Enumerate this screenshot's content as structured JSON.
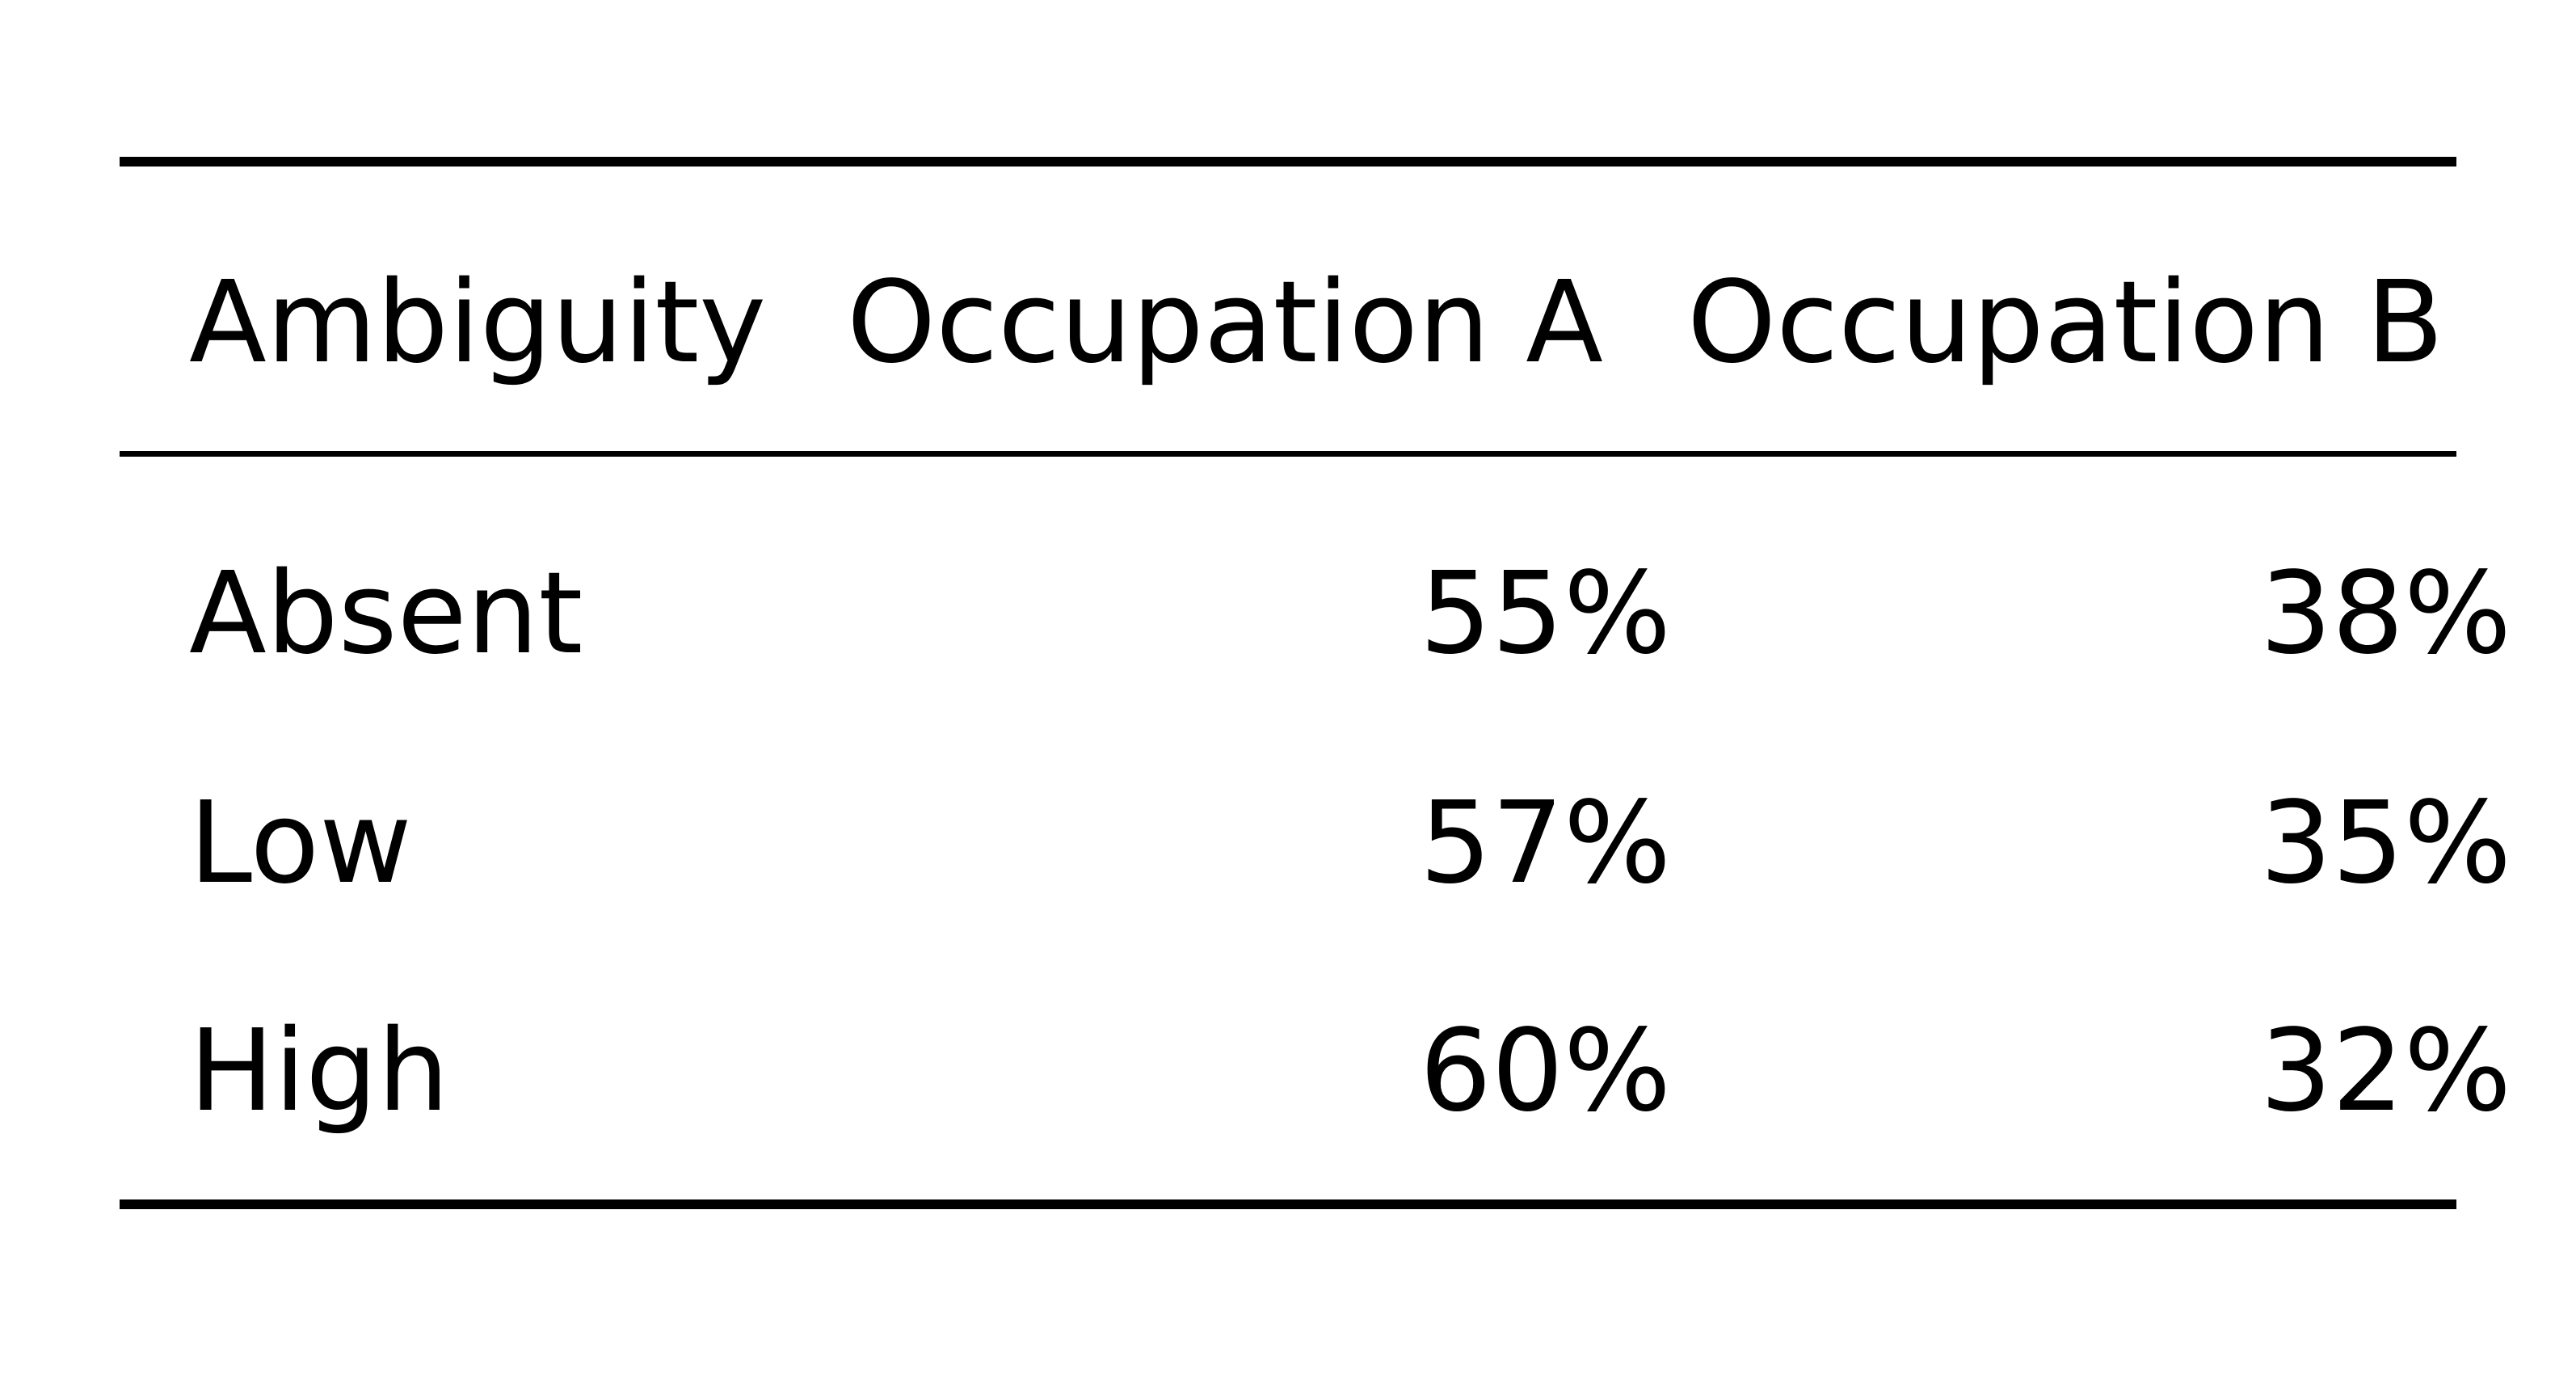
{
  "table": {
    "columns": [
      "Ambiguity",
      "Occupation A",
      "Occupation B"
    ],
    "rows": [
      [
        "Absent",
        "55%",
        "38%"
      ],
      [
        "Low",
        "57%",
        "35%"
      ],
      [
        "High",
        "60%",
        "32%"
      ]
    ]
  }
}
